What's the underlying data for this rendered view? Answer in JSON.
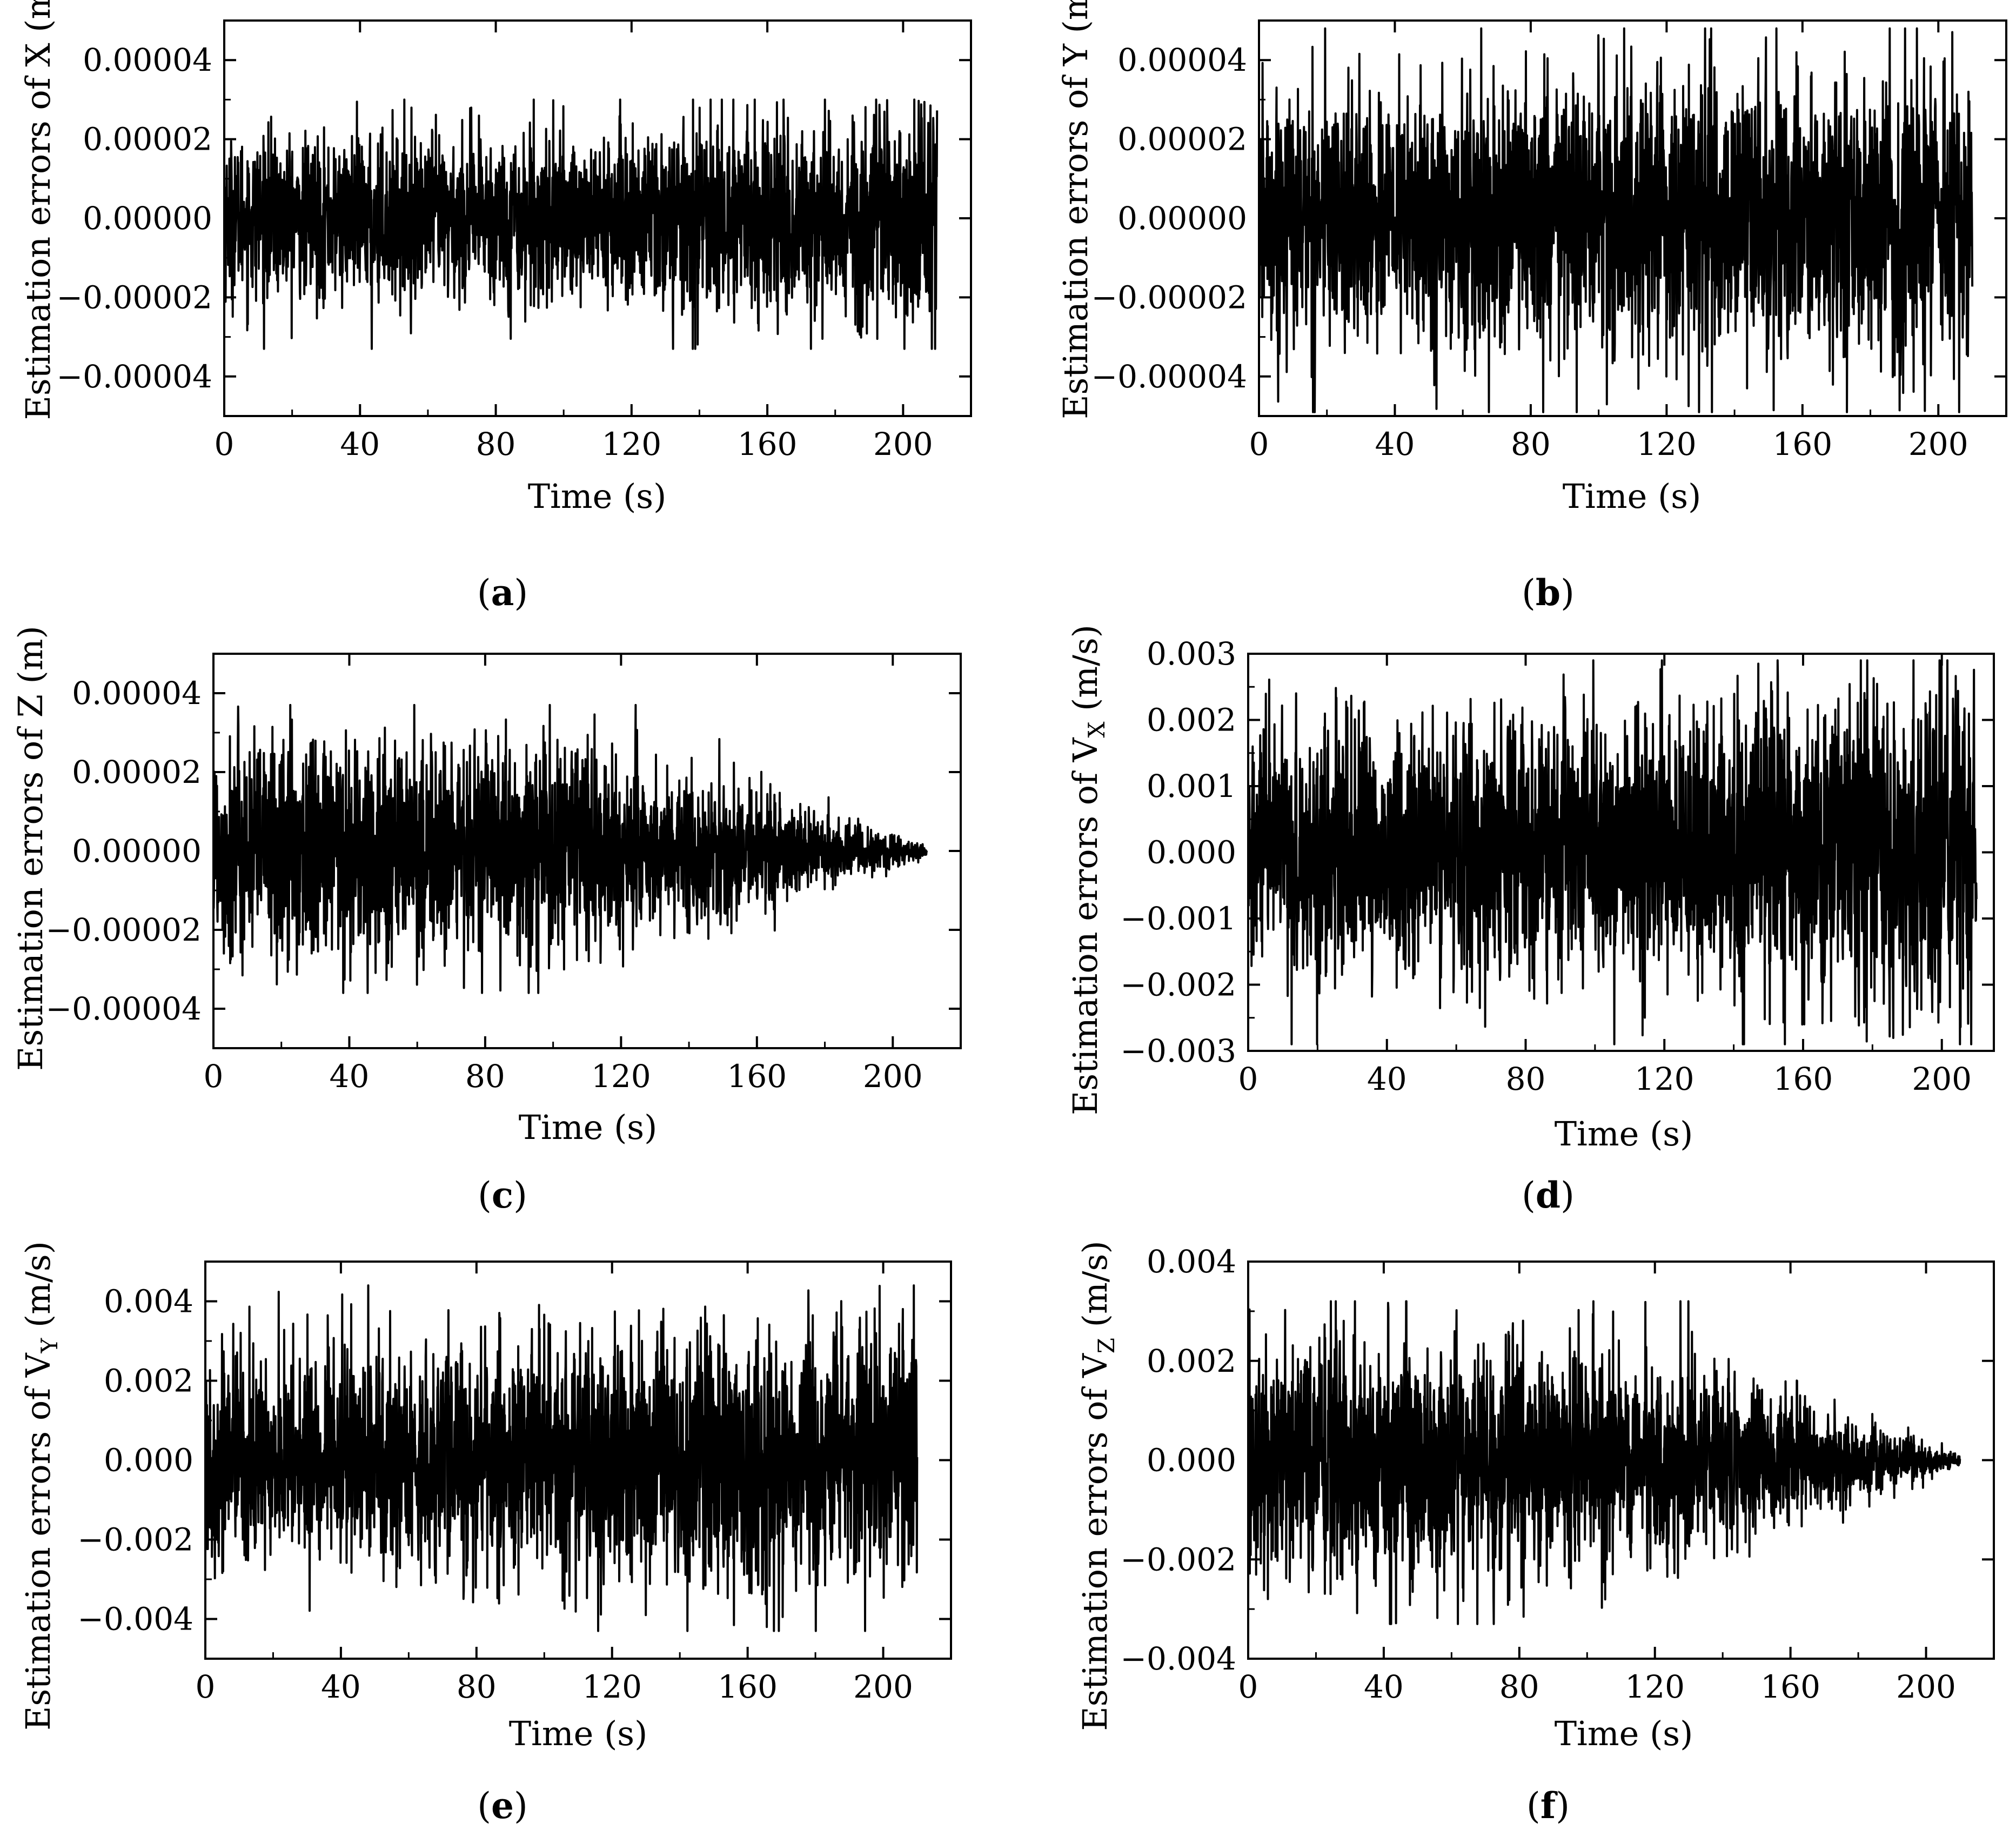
{
  "chart_data": [
    {
      "type": "line",
      "panel": "a",
      "xlabel": "Time (s)",
      "ylabel": "Estimation errors of X (m)",
      "xlim": [
        0,
        220
      ],
      "ylim": [
        -5e-05,
        5e-05
      ],
      "xticks": [
        0,
        40,
        80,
        120,
        160,
        200
      ],
      "xtick_labels": [
        "0",
        "40",
        "80",
        "120",
        "160",
        "200"
      ],
      "yticks": [
        -4e-05,
        -2e-05,
        0,
        2e-05,
        4e-05
      ],
      "ytick_labels": [
        "−0.00004",
        "−0.00002",
        "0.00000",
        "0.00002",
        "0.00004"
      ],
      "x_range": [
        0,
        210
      ],
      "envelope": {
        "t": [
          0,
          40,
          80,
          120,
          160,
          200,
          210
        ],
        "amplitude": [
          1.8e-05,
          1.8e-05,
          1.9e-05,
          2e-05,
          2.2e-05,
          2.5e-05,
          2.5e-05
        ]
      },
      "min_value": -3.3e-05,
      "max_value": 3e-05,
      "grid": false
    },
    {
      "type": "line",
      "panel": "b",
      "xlabel": "Time (s)",
      "ylabel": "Estimation errors of Y (m)",
      "xlim": [
        0,
        220
      ],
      "ylim": [
        -5e-05,
        5e-05
      ],
      "xticks": [
        0,
        40,
        80,
        120,
        160,
        200
      ],
      "xtick_labels": [
        "0",
        "40",
        "80",
        "120",
        "160",
        "200"
      ],
      "yticks": [
        -4e-05,
        -2e-05,
        0,
        2e-05,
        4e-05
      ],
      "ytick_labels": [
        "−0.00004",
        "−0.00002",
        "0.00000",
        "0.00002",
        "0.00004"
      ],
      "x_range": [
        0,
        210
      ],
      "envelope": {
        "t": [
          0,
          40,
          80,
          120,
          160,
          200,
          210
        ],
        "amplitude": [
          2.8e-05,
          2.8e-05,
          3e-05,
          3.2e-05,
          3.3e-05,
          3.3e-05,
          3.3e-05
        ]
      },
      "min_value": -4.9e-05,
      "max_value": 4.8e-05,
      "grid": false
    },
    {
      "type": "line",
      "panel": "c",
      "xlabel": "Time (s)",
      "ylabel": "Estimation errors of Z (m)",
      "xlim": [
        0,
        220
      ],
      "ylim": [
        -5e-05,
        5e-05
      ],
      "xticks": [
        0,
        40,
        80,
        120,
        160,
        200
      ],
      "xtick_labels": [
        "0",
        "40",
        "80",
        "120",
        "160",
        "200"
      ],
      "yticks": [
        -4e-05,
        -2e-05,
        0,
        2e-05,
        4e-05
      ],
      "ytick_labels": [
        "−0.00004",
        "−0.00002",
        "0.00000",
        "0.00002",
        "0.00004"
      ],
      "x_range": [
        0,
        210
      ],
      "envelope": {
        "t": [
          0,
          40,
          80,
          120,
          140,
          160,
          180,
          200,
          210
        ],
        "amplitude": [
          2.6e-05,
          2.6e-05,
          2.4e-05,
          2.2e-05,
          1.8e-05,
          1.3e-05,
          8e-06,
          4e-06,
          1e-06
        ]
      },
      "min_value": -3.6e-05,
      "max_value": 3.7e-05,
      "grid": false
    },
    {
      "type": "line",
      "panel": "d",
      "xlabel": "Time (s)",
      "ylabel": "Estimation errors of V",
      "ylabel_sub": "X",
      "ylabel_unit": " (m/s)",
      "xlim": [
        0,
        215
      ],
      "ylim": [
        -0.003,
        0.003
      ],
      "xticks": [
        0,
        40,
        80,
        120,
        160,
        200
      ],
      "xtick_labels": [
        "0",
        "40",
        "80",
        "120",
        "160",
        "200"
      ],
      "yticks": [
        -0.003,
        -0.002,
        -0.001,
        0,
        0.001,
        0.002,
        0.003
      ],
      "ytick_labels": [
        "−0.003",
        "−0.002",
        "−0.001",
        "0.000",
        "0.001",
        "0.002",
        "0.003"
      ],
      "x_range": [
        0,
        210
      ],
      "envelope": {
        "t": [
          0,
          40,
          80,
          120,
          160,
          200,
          210
        ],
        "amplitude": [
          0.0017,
          0.0017,
          0.0018,
          0.0019,
          0.0021,
          0.0024,
          0.0024
        ]
      },
      "min_value": -0.0029,
      "max_value": 0.0029,
      "grid": false
    },
    {
      "type": "line",
      "panel": "e",
      "xlabel": "Time (s)",
      "ylabel": "Estimation errors of V",
      "ylabel_sub": "Y",
      "ylabel_unit": " (m/s)",
      "xlim": [
        0,
        220
      ],
      "ylim": [
        -0.005,
        0.005
      ],
      "xticks": [
        0,
        40,
        80,
        120,
        160,
        200
      ],
      "xtick_labels": [
        "0",
        "40",
        "80",
        "120",
        "160",
        "200"
      ],
      "yticks": [
        -0.004,
        -0.002,
        0,
        0.002,
        0.004
      ],
      "ytick_labels": [
        "−0.004",
        "−0.002",
        "0.000",
        "0.002",
        "0.004"
      ],
      "x_range": [
        0,
        210
      ],
      "envelope": {
        "t": [
          0,
          40,
          80,
          120,
          160,
          200,
          210
        ],
        "amplitude": [
          0.0024,
          0.0024,
          0.0026,
          0.0028,
          0.0029,
          0.0029,
          0.0029
        ]
      },
      "min_value": -0.0043,
      "max_value": 0.0044,
      "grid": false
    },
    {
      "type": "line",
      "panel": "f",
      "xlabel": "Time (s)",
      "ylabel": "Estimation errors of V",
      "ylabel_sub": "Z",
      "ylabel_unit": " (m/s)",
      "xlim": [
        0,
        220
      ],
      "ylim": [
        -0.004,
        0.004
      ],
      "xticks": [
        0,
        40,
        80,
        120,
        160,
        200
      ],
      "xtick_labels": [
        "0",
        "40",
        "80",
        "120",
        "160",
        "200"
      ],
      "yticks": [
        -0.004,
        -0.002,
        0,
        0.002,
        0.004
      ],
      "ytick_labels": [
        "−0.004",
        "−0.002",
        "0.000",
        "0.002",
        "0.004"
      ],
      "x_range": [
        0,
        210
      ],
      "envelope": {
        "t": [
          0,
          40,
          80,
          120,
          140,
          160,
          180,
          200,
          210
        ],
        "amplitude": [
          0.0022,
          0.0022,
          0.0021,
          0.0019,
          0.0016,
          0.0011,
          0.0007,
          0.0003,
          0.0001
        ]
      },
      "min_value": -0.0033,
      "max_value": 0.0032,
      "grid": false
    }
  ],
  "captions": {
    "a": "a",
    "b": "b",
    "c": "c",
    "d": "d",
    "e": "e",
    "f": "f"
  },
  "colors": {
    "line": "#000000",
    "axes": "#000000",
    "background": "#ffffff"
  }
}
